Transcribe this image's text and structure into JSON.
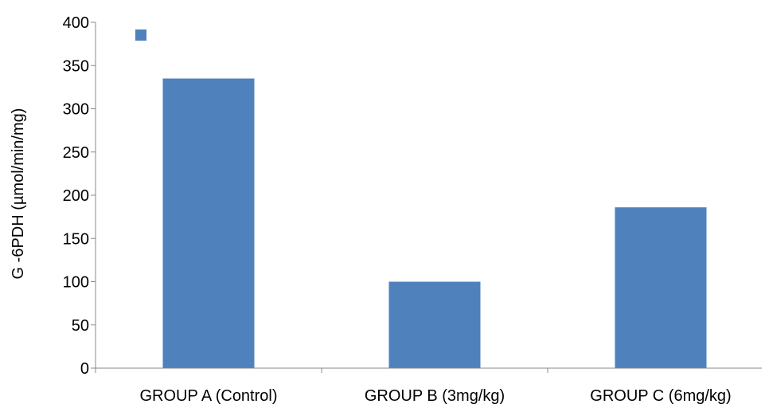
{
  "chart_data": {
    "type": "bar",
    "title": "",
    "xlabel": "",
    "ylabel": "G -6PDH (µmol/min/mg)",
    "categories": [
      "GROUP A (Control)",
      "GROUP B (3mg/kg)",
      "GROUP C (6mg/kg)"
    ],
    "series": [
      {
        "name": "",
        "values": [
          335,
          100,
          186
        ],
        "color": "#4F81BD"
      }
    ],
    "ylim": [
      0,
      400
    ],
    "yticks": [
      0,
      50,
      100,
      150,
      200,
      250,
      300,
      350,
      400
    ],
    "grid": false,
    "legend": {
      "position": "top-left",
      "show_marker": true
    }
  }
}
